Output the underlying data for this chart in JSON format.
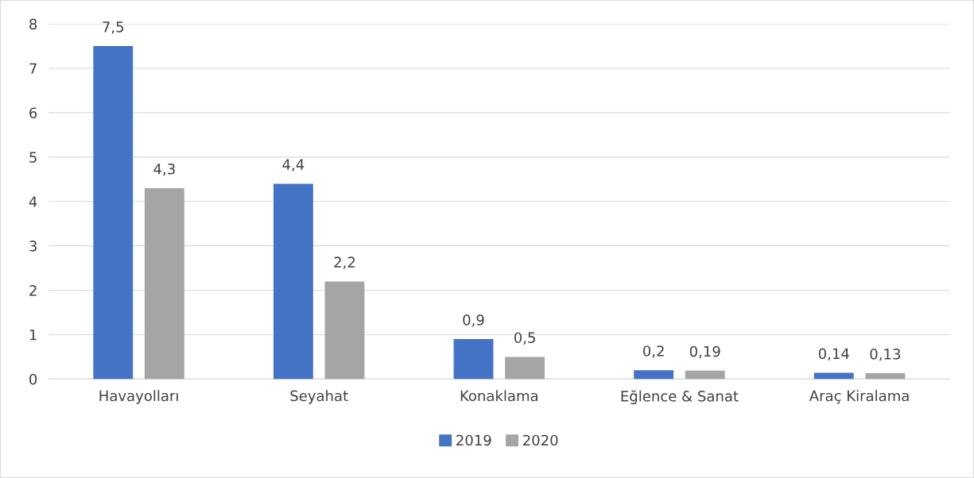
{
  "chart_data": {
    "type": "bar",
    "categories": [
      "Havayolları",
      "Seyahat",
      "Konaklama",
      "Eğlence & Sanat",
      "Araç Kiralama"
    ],
    "series": [
      {
        "name": "2019",
        "color": "#4472c4",
        "values": [
          7.5,
          4.4,
          0.9,
          0.2,
          0.14
        ],
        "value_labels": [
          "7,5",
          "4,4",
          "0,9",
          "0,2",
          "0,14"
        ]
      },
      {
        "name": "2020",
        "color": "#a5a5a5",
        "values": [
          4.3,
          2.2,
          0.5,
          0.19,
          0.13
        ],
        "value_labels": [
          "4,3",
          "2,2",
          "0,5",
          "0,19",
          "0,13"
        ]
      }
    ],
    "ylim": [
      0,
      8
    ],
    "yticks": [
      0,
      1,
      2,
      3,
      4,
      5,
      6,
      7,
      8
    ],
    "grid": "y",
    "legend": "bottom"
  }
}
